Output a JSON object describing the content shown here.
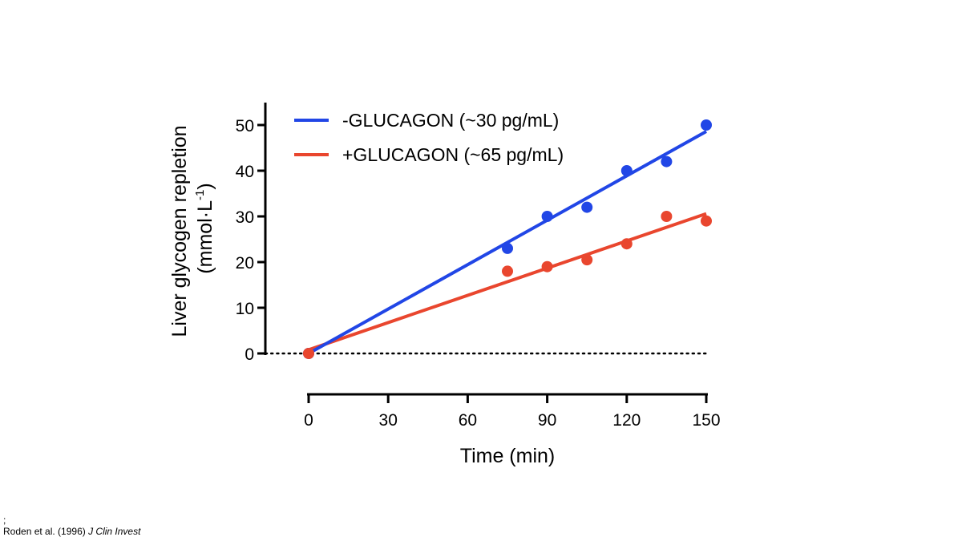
{
  "chart_data": {
    "type": "scatter",
    "xlabel": "Time (min)",
    "ylabel": [
      "Liver glycogen repletion",
      "(mmol·L",
      "-1",
      ")"
    ],
    "xlim": [
      0,
      150
    ],
    "ylim": [
      0,
      50
    ],
    "xticks": [
      0,
      30,
      60,
      90,
      120,
      150
    ],
    "yticks": [
      0,
      10,
      20,
      30,
      40,
      50
    ],
    "grid": false,
    "legend_position": "top-left",
    "baseline": {
      "y": 0,
      "style": "dotted"
    },
    "series": [
      {
        "name": "-GLUCAGON (~30 pg/mL)",
        "color": "#2146e6",
        "x": [
          0,
          75,
          90,
          105,
          120,
          135,
          150
        ],
        "y": [
          0,
          23,
          30,
          32,
          40,
          42,
          50
        ],
        "fit": {
          "x": [
            0,
            150
          ],
          "y": [
            0,
            48.6
          ]
        }
      },
      {
        "name": "+GLUCAGON (~65 pg/mL)",
        "color": "#e9462e",
        "x": [
          0,
          75,
          90,
          105,
          120,
          135,
          150
        ],
        "y": [
          0,
          18,
          19,
          20.5,
          24,
          30,
          29
        ],
        "fit": {
          "x": [
            0,
            150
          ],
          "y": [
            0.8,
            30.6
          ]
        }
      }
    ]
  },
  "footer": {
    "mark": ";",
    "citation_prefix": "Roden et al. (1996) ",
    "citation_journal": "J Clin Invest"
  }
}
